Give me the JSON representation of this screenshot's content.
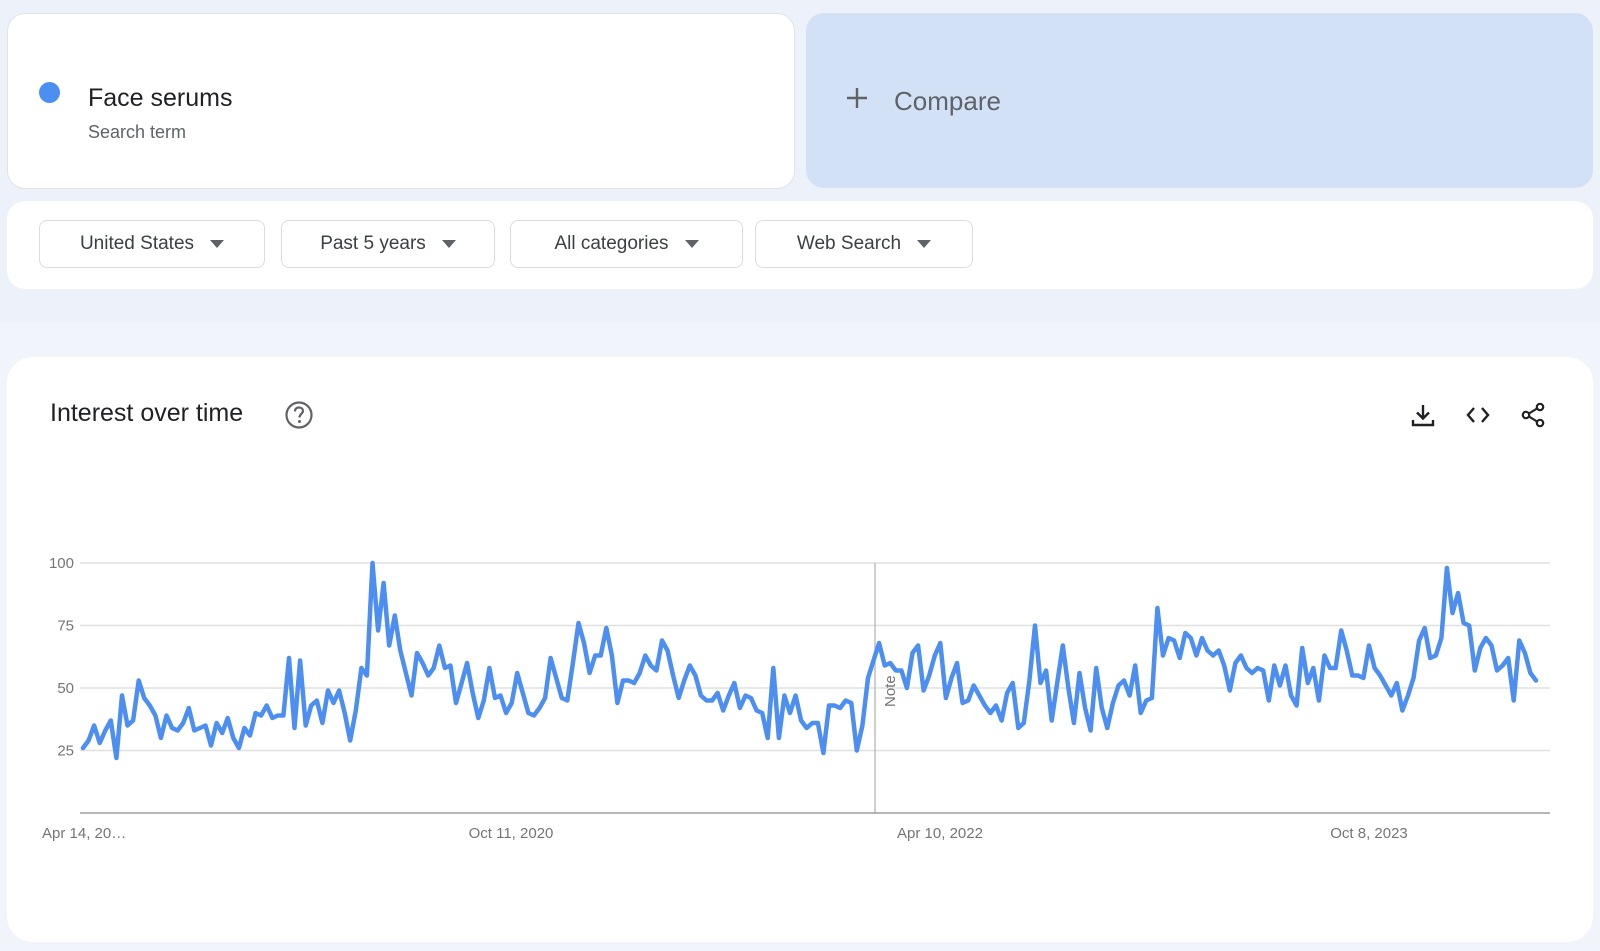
{
  "search_term": {
    "title": "Face serums",
    "subtitle": "Search term",
    "color": "#4c8ef2"
  },
  "compare": {
    "label": "Compare",
    "background": "#d2e1f6"
  },
  "filters": {
    "region": "United States",
    "time_range": "Past 5 years",
    "category": "All categories",
    "search_type": "Web Search"
  },
  "chart": {
    "title": "Interest over time",
    "note_label": "Note",
    "icons": [
      "help-icon",
      "download-icon",
      "embed-code-icon",
      "share-icon"
    ]
  },
  "chart_data": {
    "type": "line",
    "title": "Interest over time",
    "xlabel": "",
    "ylabel": "",
    "ylim": [
      0,
      100
    ],
    "yticks": [
      25,
      50,
      75,
      100
    ],
    "x_tick_labels": [
      "Apr 14, 20…",
      "Oct 11, 2020",
      "Apr 10, 2022",
      "Oct 8, 2023"
    ],
    "grid": true,
    "series": [
      {
        "color": "#4c8ef2",
        "values": [
          26,
          29,
          35,
          28,
          33,
          37,
          22,
          47,
          35,
          37,
          53,
          46,
          43,
          39,
          30,
          39,
          34,
          33,
          36,
          42,
          33,
          34,
          35,
          27,
          36,
          32,
          38,
          30,
          26,
          34,
          31,
          40,
          39,
          43,
          38,
          39,
          39,
          62,
          34,
          61,
          35,
          43,
          45,
          36,
          49,
          44,
          49,
          40,
          29,
          41,
          58,
          55,
          100,
          73,
          92,
          67,
          79,
          65,
          56,
          47,
          64,
          60,
          55,
          58,
          67,
          58,
          59,
          44,
          52,
          60,
          48,
          38,
          45,
          58,
          46,
          47,
          40,
          44,
          56,
          48,
          40,
          39,
          42,
          46,
          62,
          54,
          46,
          45,
          60,
          76,
          68,
          56,
          63,
          63,
          74,
          63,
          44,
          53,
          53,
          52,
          56,
          63,
          59,
          57,
          69,
          65,
          55,
          46,
          53,
          59,
          55,
          47,
          45,
          45,
          48,
          41,
          47,
          52,
          42,
          47,
          46,
          41,
          40,
          30,
          58,
          30,
          47,
          40,
          47,
          37,
          34,
          36,
          36,
          24,
          43,
          43,
          42,
          45,
          44,
          25,
          35,
          54,
          61,
          68,
          59,
          60,
          57,
          57,
          50,
          64,
          67,
          49,
          55,
          63,
          68,
          46,
          54,
          60,
          44,
          45,
          51,
          47,
          43,
          40,
          43,
          37,
          48,
          52,
          34,
          36,
          53,
          75,
          52,
          57,
          37,
          52,
          67,
          50,
          36,
          56,
          42,
          33,
          58,
          42,
          34,
          44,
          51,
          53,
          47,
          59,
          40,
          45,
          46,
          82,
          63,
          70,
          69,
          62,
          72,
          70,
          63,
          70,
          65,
          63,
          65,
          59,
          49,
          60,
          63,
          58,
          56,
          58,
          57,
          45,
          59,
          51,
          59,
          47,
          43,
          66,
          52,
          58,
          45,
          63,
          58,
          58,
          73,
          65,
          55,
          55,
          54,
          67,
          58,
          55,
          51,
          47,
          52,
          41,
          47,
          54,
          69,
          74,
          62,
          63,
          70,
          98,
          80,
          88,
          76,
          75,
          57,
          66,
          70,
          67,
          57,
          59,
          62,
          45,
          69,
          64,
          56,
          53
        ]
      }
    ]
  }
}
